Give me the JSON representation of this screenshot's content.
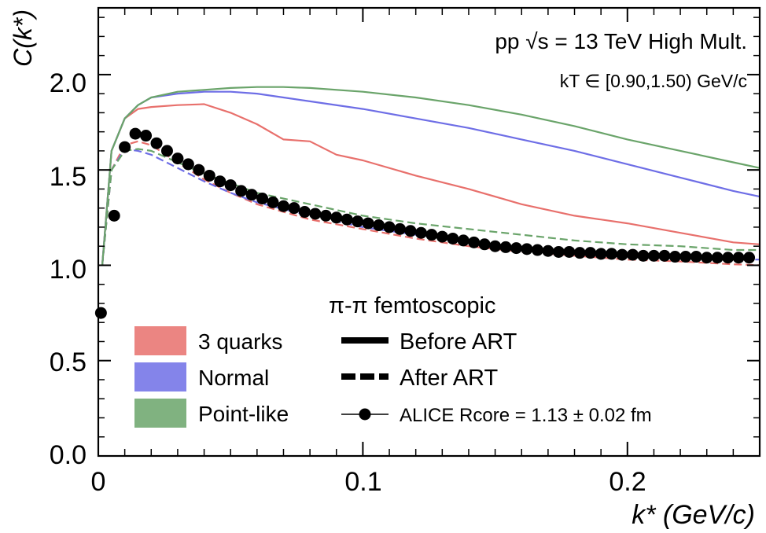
{
  "chart_data": {
    "type": "line",
    "xlabel": "k* (GeV/c)",
    "ylabel": "C(k*)",
    "xlim": [
      0,
      0.25
    ],
    "ylim": [
      0,
      2.35
    ],
    "xticks": [
      "0",
      "0.1",
      "0.2"
    ],
    "yticks": [
      "0.0",
      "0.5",
      "1.0",
      "1.5",
      "2.0"
    ],
    "annotations": {
      "system": "pp √s = 13 TeV High Mult.",
      "kt_range": "kT ∈ [0.90,1.50) GeV/c",
      "legend_title": "π-π femtoscopic"
    },
    "legend": {
      "models": [
        "3 quarks",
        "Normal",
        "Point-like"
      ],
      "before": "Before ART",
      "after": "After ART",
      "data": "ALICE Rcore = 1.13 ± 0.02 fm"
    },
    "colors": {
      "three_quarks": "#e8706c",
      "normal": "#6e6ee6",
      "point_like": "#6aa46a",
      "data": "#000000"
    },
    "series": [
      {
        "name": "3 quarks (Before ART)",
        "style": "solid",
        "color_key": "three_quarks",
        "x": [
          0.0015,
          0.005,
          0.01,
          0.015,
          0.02,
          0.03,
          0.04,
          0.05,
          0.06,
          0.07,
          0.08,
          0.09,
          0.1,
          0.12,
          0.14,
          0.16,
          0.18,
          0.2,
          0.22,
          0.24,
          0.25
        ],
        "y": [
          1.0,
          1.6,
          1.77,
          1.82,
          1.83,
          1.84,
          1.845,
          1.8,
          1.74,
          1.66,
          1.65,
          1.58,
          1.55,
          1.47,
          1.4,
          1.32,
          1.26,
          1.22,
          1.17,
          1.12,
          1.11
        ]
      },
      {
        "name": "Normal (Before ART)",
        "style": "solid",
        "color_key": "normal",
        "x": [
          0.0015,
          0.005,
          0.01,
          0.015,
          0.02,
          0.03,
          0.04,
          0.05,
          0.06,
          0.07,
          0.08,
          0.1,
          0.12,
          0.14,
          0.16,
          0.18,
          0.2,
          0.22,
          0.24,
          0.25
        ],
        "y": [
          1.0,
          1.6,
          1.77,
          1.84,
          1.88,
          1.9,
          1.91,
          1.91,
          1.9,
          1.88,
          1.86,
          1.82,
          1.77,
          1.72,
          1.66,
          1.6,
          1.53,
          1.46,
          1.39,
          1.36
        ]
      },
      {
        "name": "Point-like (Before ART)",
        "style": "solid",
        "color_key": "point_like",
        "x": [
          0.0015,
          0.005,
          0.01,
          0.015,
          0.02,
          0.03,
          0.04,
          0.05,
          0.06,
          0.07,
          0.08,
          0.1,
          0.12,
          0.14,
          0.16,
          0.18,
          0.2,
          0.22,
          0.24,
          0.25
        ],
        "y": [
          1.0,
          1.6,
          1.77,
          1.84,
          1.88,
          1.91,
          1.92,
          1.93,
          1.935,
          1.935,
          1.93,
          1.91,
          1.88,
          1.84,
          1.79,
          1.73,
          1.66,
          1.6,
          1.54,
          1.51
        ]
      },
      {
        "name": "3 quarks (After ART)",
        "style": "dashed",
        "color_key": "three_quarks",
        "x": [
          0.0015,
          0.005,
          0.01,
          0.015,
          0.02,
          0.03,
          0.04,
          0.05,
          0.06,
          0.08,
          0.1,
          0.12,
          0.14,
          0.16,
          0.18,
          0.2,
          0.22,
          0.24,
          0.25
        ],
        "y": [
          1.0,
          1.5,
          1.63,
          1.65,
          1.63,
          1.54,
          1.45,
          1.38,
          1.32,
          1.24,
          1.19,
          1.14,
          1.1,
          1.07,
          1.05,
          1.03,
          1.02,
          1.005,
          1.0
        ]
      },
      {
        "name": "Normal (After ART)",
        "style": "dashed",
        "color_key": "normal",
        "x": [
          0.0015,
          0.005,
          0.01,
          0.015,
          0.02,
          0.03,
          0.04,
          0.05,
          0.06,
          0.08,
          0.1,
          0.12,
          0.14,
          0.16,
          0.18,
          0.2,
          0.22,
          0.24,
          0.25
        ],
        "y": [
          1.0,
          1.5,
          1.61,
          1.6,
          1.58,
          1.51,
          1.44,
          1.38,
          1.33,
          1.26,
          1.2,
          1.16,
          1.12,
          1.09,
          1.07,
          1.05,
          1.04,
          1.03,
          1.03
        ]
      },
      {
        "name": "Point-like (After ART)",
        "style": "dashed",
        "color_key": "point_like",
        "x": [
          0.0015,
          0.005,
          0.01,
          0.015,
          0.02,
          0.03,
          0.04,
          0.05,
          0.06,
          0.08,
          0.1,
          0.12,
          0.14,
          0.16,
          0.18,
          0.2,
          0.22,
          0.24,
          0.25
        ],
        "y": [
          1.0,
          1.5,
          1.6,
          1.61,
          1.6,
          1.54,
          1.48,
          1.43,
          1.38,
          1.32,
          1.26,
          1.22,
          1.19,
          1.16,
          1.13,
          1.11,
          1.1,
          1.08,
          1.08
        ]
      },
      {
        "name": "ALICE data",
        "style": "markers",
        "color_key": "data",
        "x": [
          0.001,
          0.006,
          0.01,
          0.014,
          0.018,
          0.022,
          0.026,
          0.03,
          0.034,
          0.038,
          0.042,
          0.046,
          0.05,
          0.054,
          0.058,
          0.062,
          0.066,
          0.07,
          0.074,
          0.078,
          0.082,
          0.086,
          0.09,
          0.094,
          0.098,
          0.102,
          0.106,
          0.11,
          0.114,
          0.118,
          0.122,
          0.126,
          0.13,
          0.134,
          0.138,
          0.142,
          0.146,
          0.15,
          0.154,
          0.158,
          0.162,
          0.166,
          0.17,
          0.174,
          0.178,
          0.182,
          0.186,
          0.19,
          0.194,
          0.198,
          0.202,
          0.206,
          0.21,
          0.214,
          0.218,
          0.222,
          0.226,
          0.23,
          0.234,
          0.238,
          0.242,
          0.246
        ],
        "y": [
          0.75,
          1.26,
          1.62,
          1.69,
          1.68,
          1.64,
          1.6,
          1.56,
          1.53,
          1.5,
          1.47,
          1.44,
          1.42,
          1.39,
          1.37,
          1.35,
          1.33,
          1.31,
          1.3,
          1.28,
          1.27,
          1.26,
          1.25,
          1.24,
          1.23,
          1.22,
          1.21,
          1.2,
          1.19,
          1.18,
          1.17,
          1.16,
          1.15,
          1.14,
          1.13,
          1.12,
          1.11,
          1.1,
          1.095,
          1.09,
          1.085,
          1.08,
          1.075,
          1.07,
          1.07,
          1.065,
          1.065,
          1.06,
          1.06,
          1.055,
          1.055,
          1.05,
          1.05,
          1.05,
          1.045,
          1.045,
          1.045,
          1.04,
          1.04,
          1.04,
          1.04,
          1.04
        ]
      }
    ]
  }
}
